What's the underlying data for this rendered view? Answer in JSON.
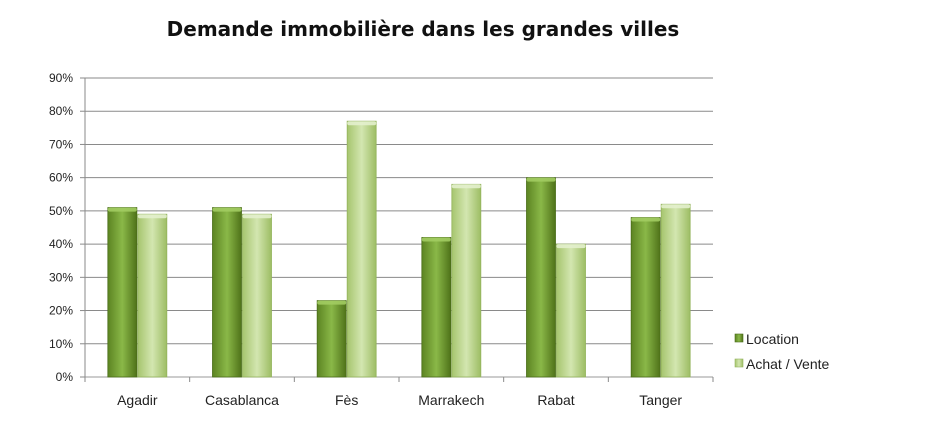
{
  "chart_data": {
    "type": "bar",
    "title": "Demande immobilière dans les grandes villes",
    "categories": [
      "Agadir",
      "Casablanca",
      "Fès",
      "Marrakech",
      "Rabat",
      "Tanger"
    ],
    "series": [
      {
        "name": "Location",
        "values": [
          51,
          51,
          23,
          42,
          60,
          48
        ],
        "color": "#6e9a2f"
      },
      {
        "name": "Achat / Vente",
        "values": [
          49,
          49,
          77,
          58,
          40,
          52
        ],
        "color": "#b8d486"
      }
    ],
    "ylim": [
      0,
      90
    ],
    "yticks": [
      "0%",
      "10%",
      "20%",
      "30%",
      "40%",
      "50%",
      "60%",
      "70%",
      "80%",
      "90%"
    ],
    "unit": "%",
    "grid": true,
    "legend_position": "right"
  }
}
